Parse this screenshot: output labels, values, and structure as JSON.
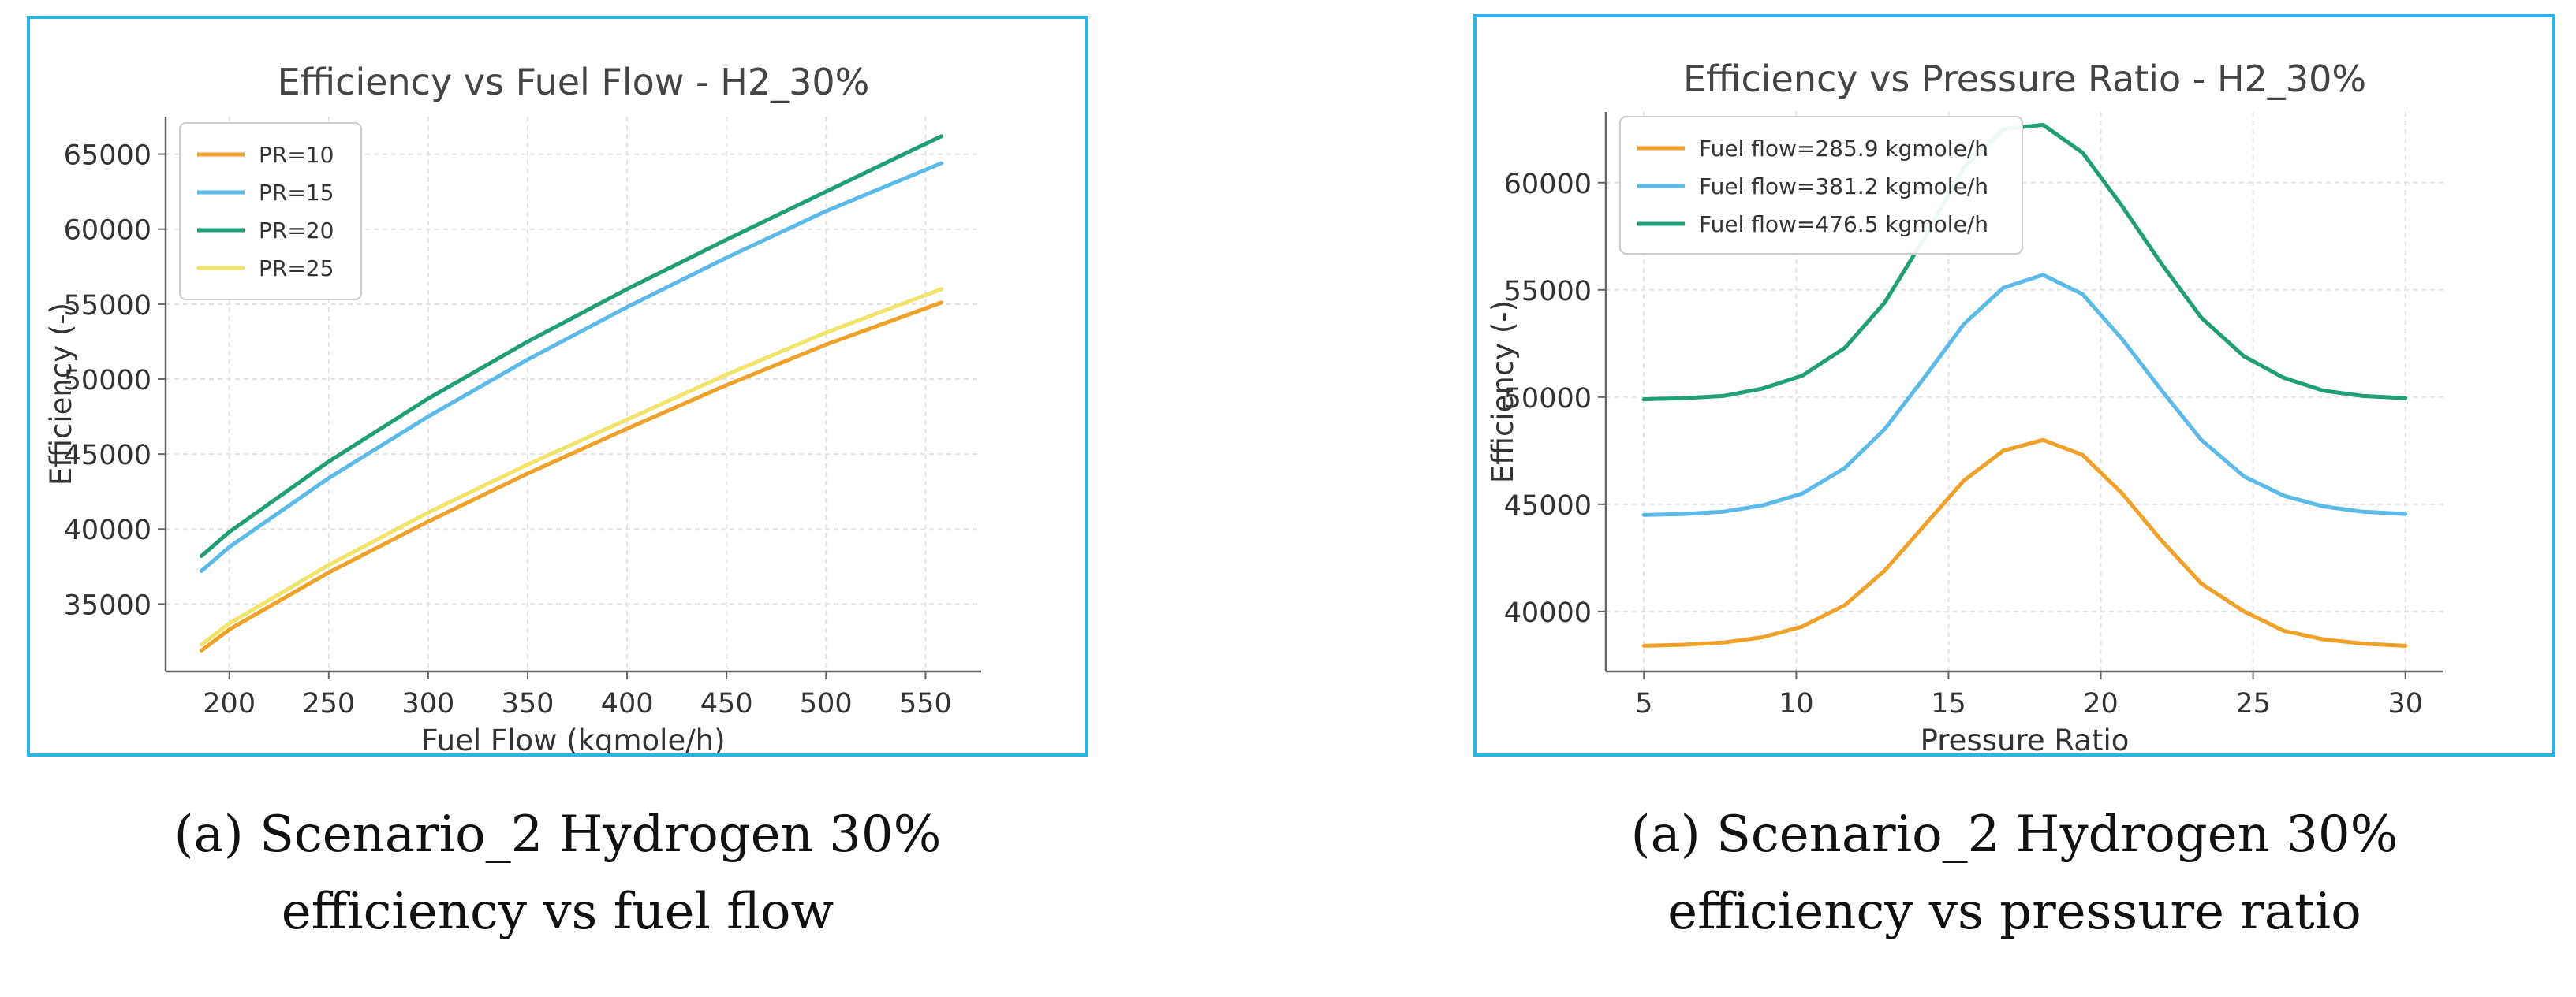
{
  "figures": [
    {
      "caption": [
        "(a) Scenario_2 Hydrogen 30%",
        "efficiency vs fuel flow"
      ]
    },
    {
      "caption": [
        "(a) Scenario_2 Hydrogen 30%",
        "efficiency vs pressure ratio"
      ]
    }
  ],
  "chart_data": [
    {
      "type": "line",
      "title": "Efficiency vs Fuel Flow - H2_30%",
      "xlabel": "Fuel Flow (kgmole/h)",
      "ylabel": "Efficiency (-)",
      "xlim": [
        168,
        578
      ],
      "ylim": [
        30500,
        67500
      ],
      "xticks": [
        200,
        250,
        300,
        350,
        400,
        450,
        500,
        550
      ],
      "yticks": [
        35000,
        40000,
        45000,
        50000,
        55000,
        60000,
        65000
      ],
      "grid": true,
      "legend": "top-left",
      "x": [
        186,
        200,
        250,
        300,
        350,
        400,
        450,
        500,
        558
      ],
      "series": [
        {
          "name": "PR=10",
          "color": "#f0a12a",
          "values": [
            31900,
            33300,
            37100,
            40500,
            43700,
            46700,
            49600,
            52300,
            55100
          ]
        },
        {
          "name": "PR=15",
          "color": "#5cbae8",
          "values": [
            37200,
            38800,
            43400,
            47500,
            51300,
            54800,
            58100,
            61200,
            64400
          ]
        },
        {
          "name": "PR=20",
          "color": "#1f9e78",
          "values": [
            38200,
            39800,
            44500,
            48700,
            52500,
            56000,
            59300,
            62500,
            66200
          ]
        },
        {
          "name": "PR=25",
          "color": "#f2e46a",
          "values": [
            32300,
            33700,
            37600,
            41100,
            44300,
            47300,
            50300,
            53100,
            56000
          ]
        }
      ]
    },
    {
      "type": "line",
      "title": "Efficiency vs Pressure Ratio - H2_30%",
      "xlabel": "Pressure Ratio",
      "ylabel": "Efficiency (-)",
      "xlim": [
        3.75,
        31.25
      ],
      "ylim": [
        37200,
        63300
      ],
      "xticks": [
        5,
        10,
        15,
        20,
        25,
        30
      ],
      "yticks": [
        40000,
        45000,
        50000,
        55000,
        60000
      ],
      "grid": true,
      "legend": "top-left",
      "x": [
        5,
        6.3,
        7.6,
        8.9,
        10.2,
        11.6,
        12.9,
        14.2,
        15.5,
        16.8,
        18.1,
        19.4,
        20.7,
        22.0,
        23.3,
        24.7,
        26.0,
        27.3,
        28.6,
        30
      ],
      "series": [
        {
          "name": "Fuel flow=285.9 kgmole/h",
          "color": "#f0a12a",
          "values": [
            38400,
            38450,
            38550,
            38800,
            39300,
            40300,
            41900,
            44000,
            46100,
            47500,
            48000,
            47300,
            45500,
            43300,
            41300,
            40000,
            39100,
            38700,
            38500,
            38400
          ]
        },
        {
          "name": "Fuel flow=381.2 kgmole/h",
          "color": "#5cbae8",
          "values": [
            44500,
            44550,
            44650,
            44950,
            45500,
            46700,
            48500,
            50900,
            53400,
            55100,
            55700,
            54800,
            52700,
            50300,
            48000,
            46300,
            45400,
            44900,
            44650,
            44550
          ]
        },
        {
          "name": "Fuel flow=476.5 kgmole/h",
          "color": "#1f9e78",
          "values": [
            49900,
            49950,
            50050,
            50400,
            51000,
            52300,
            54400,
            57400,
            60700,
            62500,
            62700,
            61400,
            58900,
            56200,
            53700,
            51900,
            50900,
            50300,
            50050,
            49950
          ]
        }
      ]
    }
  ]
}
